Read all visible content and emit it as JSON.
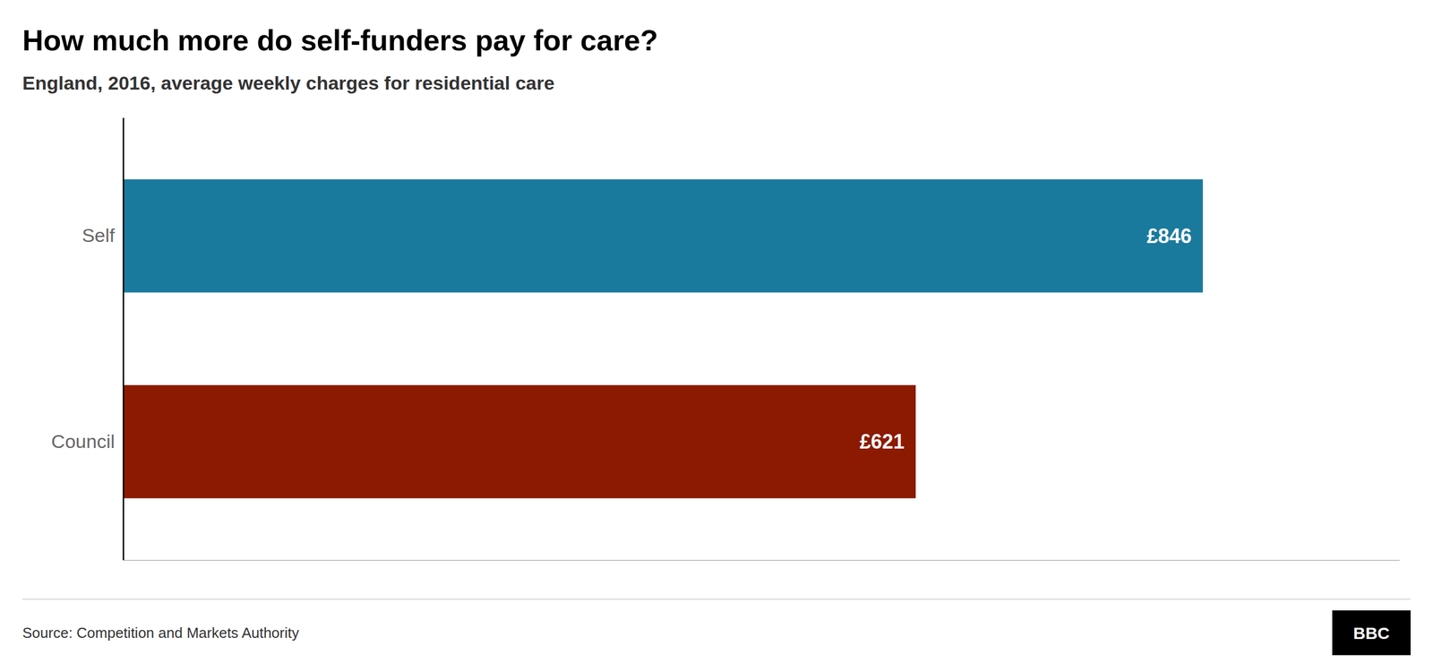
{
  "chart_data": {
    "type": "bar",
    "orientation": "horizontal",
    "title": "How much more do self-funders pay for care?",
    "subtitle": "England, 2016, average weekly charges for residential care",
    "categories": [
      "Self",
      "Council"
    ],
    "values": [
      846,
      621
    ],
    "value_labels": [
      "£846",
      "£621"
    ],
    "data_labels": true,
    "colors": [
      "#1a7a9e",
      "#8b1a00"
    ],
    "xlim": [
      0,
      1000
    ],
    "tick_labels": "y",
    "grid": false,
    "source": "Source: Competition and Markets Authority",
    "logo": "BBC"
  }
}
